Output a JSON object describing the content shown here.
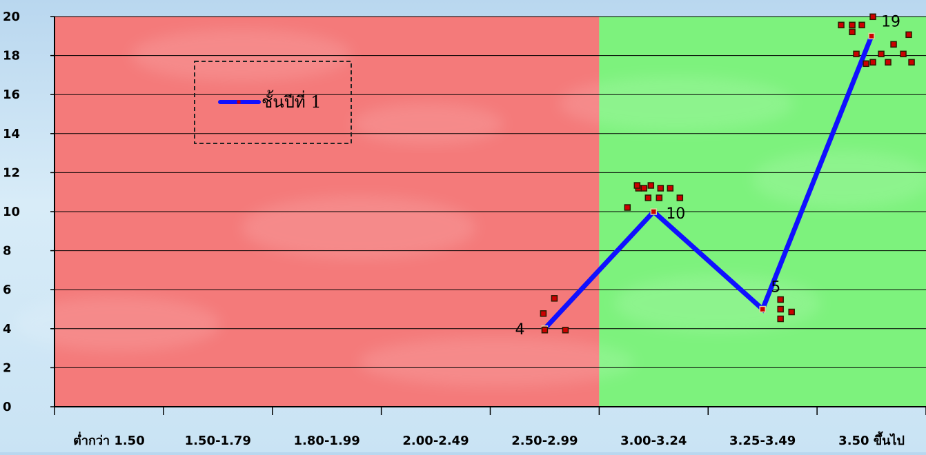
{
  "chart_data": {
    "type": "line",
    "categories": [
      "ต่ำกว่า 1.50",
      "1.50-1.79",
      "1.80-1.99",
      "2.00-2.49",
      "2.50-2.99",
      "3.00-3.24",
      "3.25-3.49",
      "3.50 ขึ้นไป"
    ],
    "series": [
      {
        "name": "ชั้นปีที่ 1",
        "points": [
          {
            "category": "2.50-2.99",
            "value": 4
          },
          {
            "category": "3.00-3.24",
            "value": 10
          },
          {
            "category": "3.25-3.49",
            "value": 5
          },
          {
            "category": "3.50 ขึ้นไป",
            "value": 19
          }
        ],
        "color": "#1010ff"
      }
    ],
    "data_labels": [
      "4",
      "10",
      "5",
      "19"
    ],
    "yticks": [
      "0",
      "2",
      "4",
      "6",
      "8",
      "10",
      "12",
      "14",
      "16",
      "18",
      "20"
    ],
    "ylim": [
      0,
      20
    ],
    "grid": true,
    "legend_position": "top-left",
    "zones": [
      {
        "from": "ต่ำกว่า 1.50",
        "to": "2.50-2.99",
        "color": "#f47a7a"
      },
      {
        "from": "3.00-3.24",
        "to": "3.50 ขึ้นไป",
        "color": "#7df27d"
      }
    ]
  },
  "colors": {
    "line": "#1010ff",
    "marker": "#cc0000",
    "grid": "#000000",
    "red_zone": "#f47a7a",
    "green_zone": "#7df27d"
  }
}
